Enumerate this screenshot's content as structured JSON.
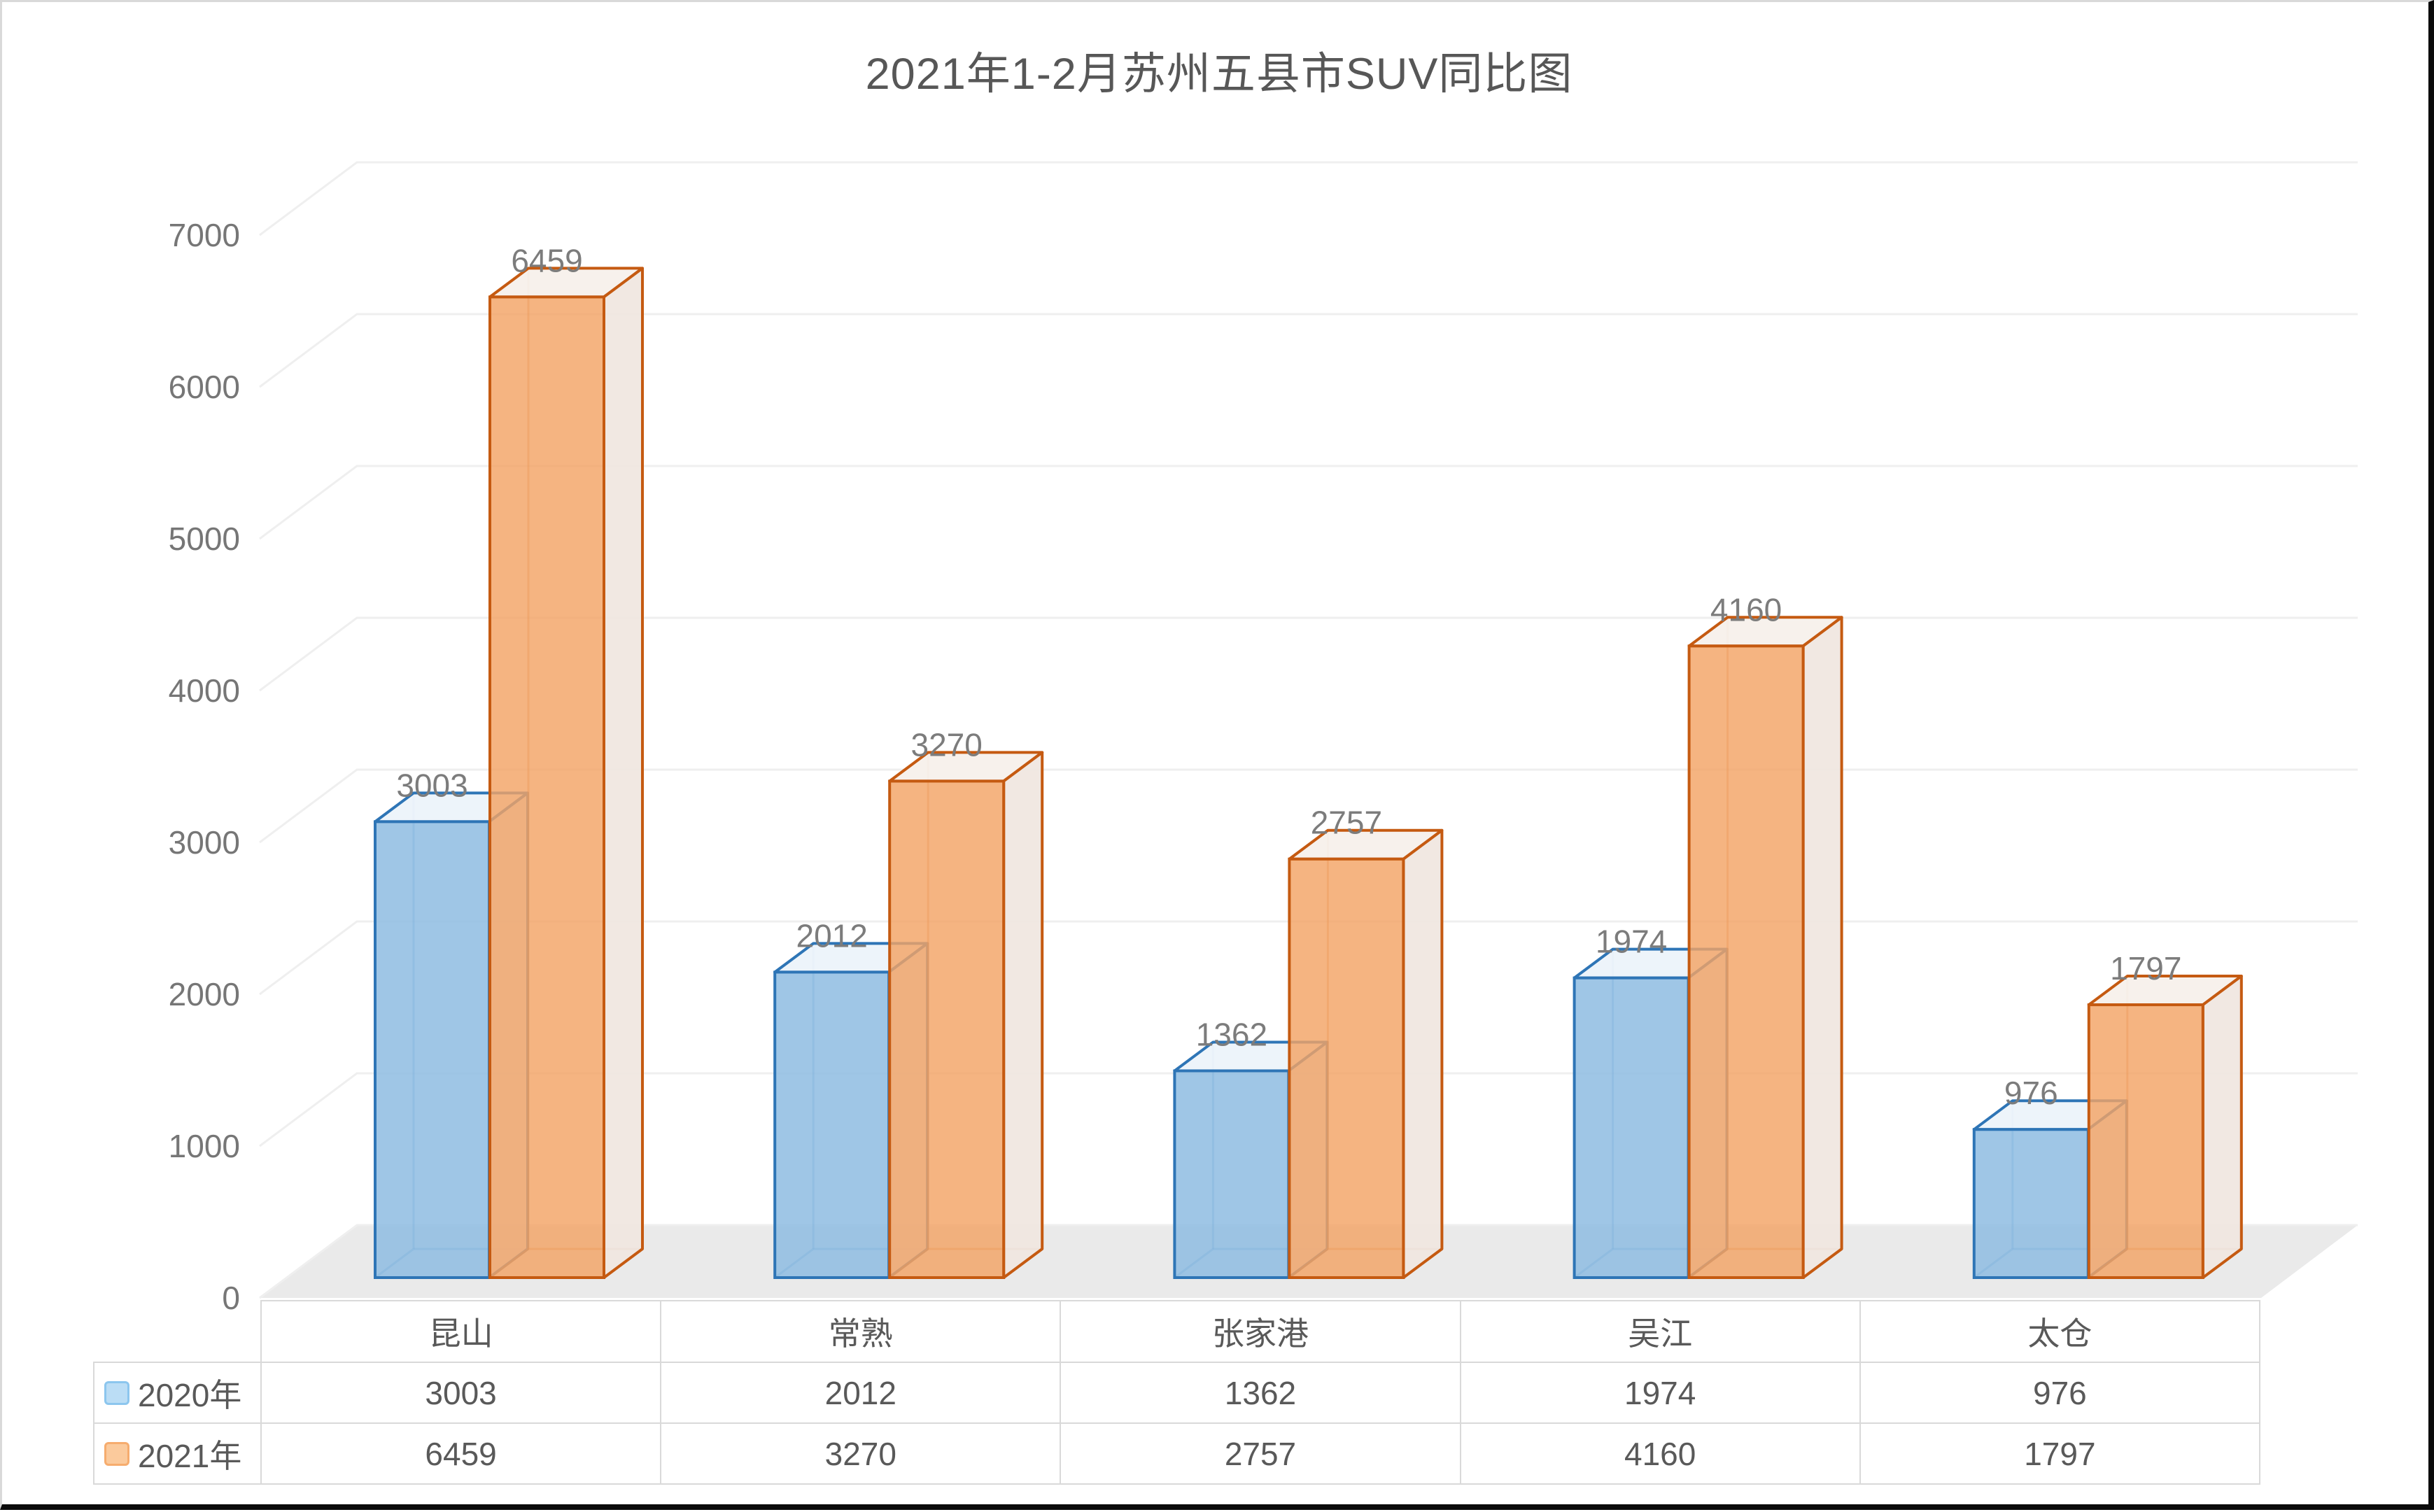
{
  "title": "2021年1-2月苏州五县市SUV同比图",
  "y_axis": {
    "tick_labels": [
      "0",
      "1000",
      "2000",
      "3000",
      "4000",
      "5000",
      "6000",
      "7000"
    ],
    "min": 0,
    "max": 7000,
    "step": 1000
  },
  "chart_data": {
    "type": "bar",
    "subtype": "3d-clustered-column",
    "title": "2021年1-2月苏州五县市SUV同比图",
    "categories": [
      "昆山",
      "常熟",
      "张家港",
      "吴江",
      "太仓"
    ],
    "series": [
      {
        "name": "2020年",
        "values": [
          3003,
          2012,
          1362,
          1974,
          976
        ],
        "value_labels": [
          "3003",
          "2012",
          "1362",
          "1974",
          "976"
        ],
        "front_color": "rgba(142,188,226,0.85)",
        "border_color": "#2E75B6",
        "top_color": "rgba(236,243,250,0.95)",
        "side_color": "rgba(214,226,240,0.9)",
        "inner_edge_color": "rgba(46,117,182,0.42)",
        "legend_chip_fill": "#BBDDF5",
        "legend_chip_border": "#8CC6EE"
      },
      {
        "name": "2021年",
        "values": [
          6459,
          3270,
          2757,
          4160,
          1797
        ],
        "value_labels": [
          "6459",
          "3270",
          "2757",
          "4160",
          "1797"
        ],
        "front_color": "rgba(243,164,101,0.82)",
        "border_color": "#C55A11",
        "top_color": "rgba(247,240,235,0.95)",
        "side_color": "rgba(240,230,223,0.92)",
        "inner_edge_color": "rgba(197,90,17,0.4)",
        "legend_chip_fill": "#FBCA9C",
        "legend_chip_border": "#F6AC6E"
      }
    ],
    "ylim": [
      0,
      7000
    ],
    "grid": true,
    "value_labels_shown": true,
    "legend_position": "table-left",
    "style": {
      "grid_color": "#EFEFEF",
      "floor_color": "#EAEAEA",
      "axis_label_color": "#767676",
      "data_label_color": "#7C7C7C",
      "title_color": "#575757",
      "table_border_color": "#D9D9D9",
      "table_text_color": "#595959",
      "background": "#FFFFFF"
    }
  }
}
